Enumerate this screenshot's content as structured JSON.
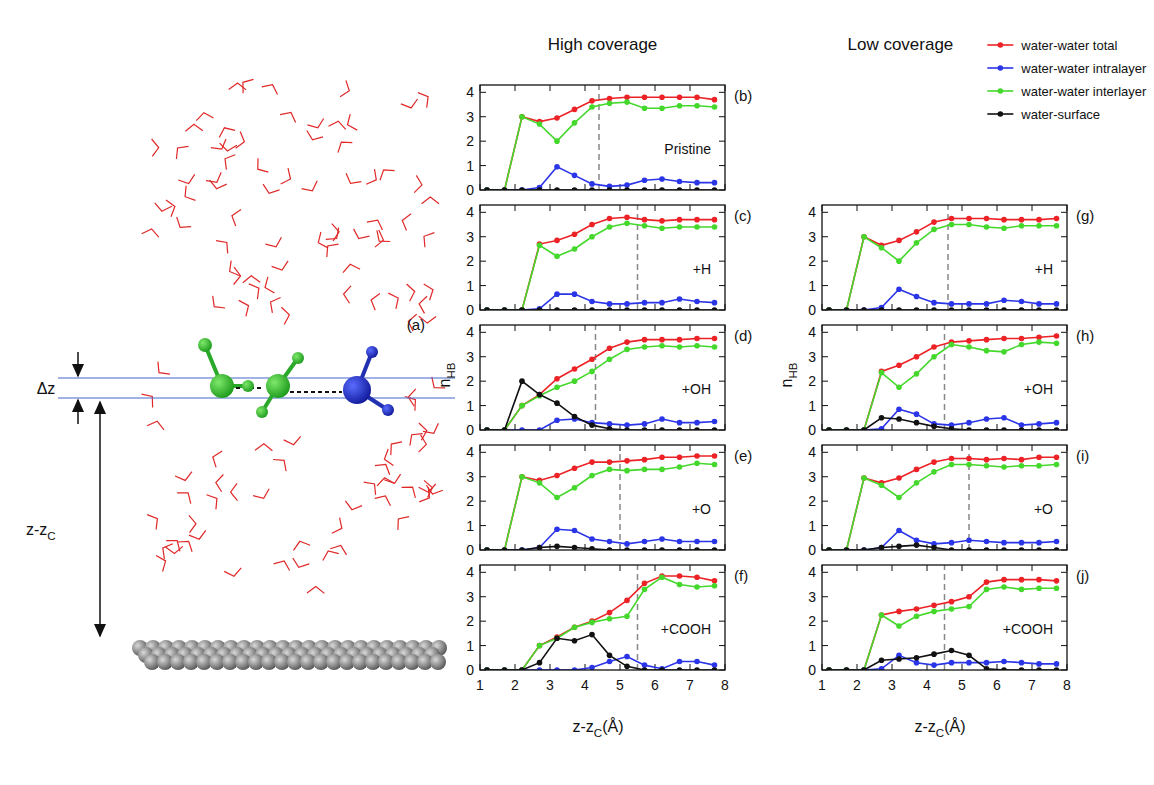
{
  "column_titles": [
    "High coverage",
    "Low coverage"
  ],
  "illustration": {
    "label": "(a)",
    "dz": "Δz",
    "height": {
      "main": "z-z",
      "sub": "C"
    }
  },
  "chart_data": [
    {
      "type": "line",
      "panel": "(b)",
      "title": "Pristine",
      "x": [
        1.2,
        1.7,
        2.2,
        2.7,
        3.2,
        3.7,
        4.2,
        4.7,
        5.2,
        5.7,
        6.2,
        6.7,
        7.2,
        7.7
      ],
      "xlim": [
        1,
        8
      ],
      "ylim": [
        0,
        4.3
      ],
      "xticks": [
        1,
        2,
        3,
        4,
        5,
        6,
        7,
        8
      ],
      "yticks": [
        0,
        1,
        2,
        3,
        4
      ],
      "tick_labels": "y",
      "marker": "circle",
      "vline": 4.4,
      "series": [
        {
          "name": "water-water total",
          "color": "#ec2226",
          "values": [
            0,
            0,
            3.0,
            2.8,
            2.95,
            3.3,
            3.65,
            3.75,
            3.8,
            3.8,
            3.8,
            3.8,
            3.8,
            3.7
          ]
        },
        {
          "name": "water-water intralayer",
          "color": "#2b35e8",
          "values": [
            0,
            0,
            0,
            0.1,
            0.95,
            0.6,
            0.25,
            0.15,
            0.2,
            0.4,
            0.45,
            0.35,
            0.3,
            0.3
          ]
        },
        {
          "name": "water-water interlayer",
          "color": "#44d82c",
          "values": [
            0,
            0,
            3.0,
            2.7,
            2.0,
            2.75,
            3.4,
            3.55,
            3.6,
            3.35,
            3.35,
            3.45,
            3.45,
            3.4
          ]
        },
        {
          "name": "water-surface",
          "color": "#111111",
          "values": [
            0,
            0,
            0,
            0,
            0,
            0,
            0,
            0,
            0,
            0,
            0,
            0,
            0,
            0
          ]
        }
      ]
    },
    {
      "type": "line",
      "panel": "(c)",
      "title": "+H",
      "x": [
        1.2,
        1.7,
        2.2,
        2.7,
        3.2,
        3.7,
        4.2,
        4.7,
        5.2,
        5.7,
        6.2,
        6.7,
        7.2,
        7.7
      ],
      "xlim": [
        1,
        8
      ],
      "ylim": [
        0,
        4.3
      ],
      "xticks": [
        1,
        2,
        3,
        4,
        5,
        6,
        7,
        8
      ],
      "yticks": [
        0,
        1,
        2,
        3,
        4
      ],
      "tick_labels": "y",
      "marker": "circle",
      "vline": 5.5,
      "series": [
        {
          "name": "water-water total",
          "color": "#ec2226",
          "values": [
            0,
            0,
            0,
            2.7,
            2.85,
            3.1,
            3.5,
            3.75,
            3.8,
            3.7,
            3.65,
            3.7,
            3.7,
            3.7
          ]
        },
        {
          "name": "water-water intralayer",
          "color": "#2b35e8",
          "values": [
            0,
            0,
            0,
            0.05,
            0.65,
            0.65,
            0.35,
            0.25,
            0.25,
            0.3,
            0.3,
            0.45,
            0.35,
            0.3
          ]
        },
        {
          "name": "water-water interlayer",
          "color": "#44d82c",
          "values": [
            0,
            0,
            0,
            2.65,
            2.2,
            2.5,
            3.0,
            3.4,
            3.55,
            3.45,
            3.35,
            3.4,
            3.4,
            3.4
          ]
        },
        {
          "name": "water-surface",
          "color": "#111111",
          "values": [
            0,
            0,
            0,
            0,
            0,
            0,
            0,
            0,
            0,
            0,
            0,
            0,
            0,
            0
          ]
        }
      ]
    },
    {
      "type": "line",
      "panel": "(d)",
      "title": "+OH",
      "ylabel": {
        "main": "n",
        "sub": "HB"
      },
      "x": [
        1.2,
        1.7,
        2.2,
        2.7,
        3.2,
        3.7,
        4.2,
        4.7,
        5.2,
        5.7,
        6.2,
        6.7,
        7.2,
        7.7
      ],
      "xlim": [
        1,
        8
      ],
      "ylim": [
        0,
        4.3
      ],
      "xticks": [
        1,
        2,
        3,
        4,
        5,
        6,
        7,
        8
      ],
      "yticks": [
        0,
        1,
        2,
        3,
        4
      ],
      "tick_labels": "y",
      "marker": "circle",
      "vline": 4.3,
      "series": [
        {
          "name": "water-water total",
          "color": "#ec2226",
          "values": [
            0,
            0,
            1.0,
            1.45,
            2.1,
            2.5,
            2.9,
            3.35,
            3.6,
            3.7,
            3.7,
            3.7,
            3.75,
            3.75
          ]
        },
        {
          "name": "water-water intralayer",
          "color": "#2b35e8",
          "values": [
            0,
            0,
            0,
            0,
            0.4,
            0.45,
            0.3,
            0.25,
            0.2,
            0.25,
            0.45,
            0.3,
            0.3,
            0.35
          ]
        },
        {
          "name": "water-water interlayer",
          "color": "#44d82c",
          "values": [
            0,
            0,
            1.0,
            1.4,
            1.75,
            2.0,
            2.4,
            2.9,
            3.3,
            3.4,
            3.45,
            3.4,
            3.45,
            3.4
          ]
        },
        {
          "name": "water-surface",
          "color": "#111111",
          "values": [
            0,
            0,
            2.0,
            1.45,
            1.1,
            0.55,
            0.2,
            0.05,
            0,
            0,
            0,
            0,
            0,
            0
          ]
        }
      ]
    },
    {
      "type": "line",
      "panel": "(e)",
      "title": "+O",
      "x": [
        1.2,
        1.7,
        2.2,
        2.7,
        3.2,
        3.7,
        4.2,
        4.7,
        5.2,
        5.7,
        6.2,
        6.7,
        7.2,
        7.7
      ],
      "xlim": [
        1,
        8
      ],
      "ylim": [
        0,
        4.3
      ],
      "xticks": [
        1,
        2,
        3,
        4,
        5,
        6,
        7,
        8
      ],
      "yticks": [
        0,
        1,
        2,
        3,
        4
      ],
      "tick_labels": "y",
      "marker": "circle",
      "vline": 5.0,
      "series": [
        {
          "name": "water-water total",
          "color": "#ec2226",
          "values": [
            0,
            0,
            3.0,
            2.85,
            3.05,
            3.35,
            3.6,
            3.6,
            3.65,
            3.7,
            3.8,
            3.8,
            3.85,
            3.85
          ]
        },
        {
          "name": "water-water intralayer",
          "color": "#2b35e8",
          "values": [
            0,
            0,
            0,
            0.1,
            0.85,
            0.8,
            0.45,
            0.35,
            0.25,
            0.35,
            0.45,
            0.35,
            0.35,
            0.35
          ]
        },
        {
          "name": "water-water interlayer",
          "color": "#44d82c",
          "values": [
            0,
            0,
            3.0,
            2.75,
            2.15,
            2.55,
            3.05,
            3.3,
            3.25,
            3.3,
            3.3,
            3.4,
            3.55,
            3.5
          ]
        },
        {
          "name": "water-surface",
          "color": "#111111",
          "values": [
            0,
            0,
            0,
            0.1,
            0.15,
            0.1,
            0.05,
            0,
            0,
            0,
            0,
            0,
            0,
            0
          ]
        }
      ]
    },
    {
      "type": "line",
      "panel": "(f)",
      "title": "+COOH",
      "xlabel": {
        "main": "z-z",
        "sub": "C",
        "suffix": "(Å)"
      },
      "x": [
        1.2,
        1.7,
        2.2,
        2.7,
        3.2,
        3.7,
        4.2,
        4.7,
        5.2,
        5.7,
        6.2,
        6.7,
        7.2,
        7.7
      ],
      "xlim": [
        1,
        8
      ],
      "ylim": [
        0,
        4.3
      ],
      "xticks": [
        1,
        2,
        3,
        4,
        5,
        6,
        7,
        8
      ],
      "yticks": [
        0,
        1,
        2,
        3,
        4
      ],
      "marker": "circle",
      "vline": 5.5,
      "series": [
        {
          "name": "water-water total",
          "color": "#ec2226",
          "values": [
            0,
            0,
            0,
            1.0,
            1.35,
            1.75,
            2.0,
            2.35,
            2.85,
            3.55,
            3.85,
            3.85,
            3.8,
            3.65
          ]
        },
        {
          "name": "water-water intralayer",
          "color": "#2b35e8",
          "values": [
            0,
            0,
            0,
            0,
            0,
            0,
            0.1,
            0.35,
            0.55,
            0.2,
            0.05,
            0.35,
            0.35,
            0.2
          ]
        },
        {
          "name": "water-water interlayer",
          "color": "#44d82c",
          "values": [
            0,
            0,
            0,
            1.0,
            1.3,
            1.75,
            1.95,
            2.1,
            2.2,
            3.3,
            3.8,
            3.5,
            3.4,
            3.45
          ]
        },
        {
          "name": "water-surface",
          "color": "#111111",
          "values": [
            0,
            0,
            0,
            0.3,
            1.3,
            1.2,
            1.45,
            0.6,
            0.15,
            0,
            0,
            0,
            0,
            0
          ]
        }
      ]
    },
    {
      "type": "line",
      "panel": "(g)",
      "title": "+H",
      "legend": "top",
      "x": [
        1.2,
        1.7,
        2.2,
        2.7,
        3.2,
        3.7,
        4.2,
        4.7,
        5.2,
        5.7,
        6.2,
        6.7,
        7.2,
        7.7
      ],
      "xlim": [
        1,
        8
      ],
      "ylim": [
        0,
        4.3
      ],
      "xticks": [
        1,
        2,
        3,
        4,
        5,
        6,
        7,
        8
      ],
      "yticks": [
        0,
        1,
        2,
        3,
        4
      ],
      "tick_labels": "y",
      "marker": "circle",
      "vline": 4.6,
      "series": [
        {
          "name": "water-water total",
          "color": "#ec2226",
          "values": [
            0,
            0,
            3.0,
            2.65,
            2.85,
            3.2,
            3.6,
            3.75,
            3.75,
            3.75,
            3.7,
            3.7,
            3.7,
            3.75
          ]
        },
        {
          "name": "water-water intralayer",
          "color": "#2b35e8",
          "values": [
            0,
            0,
            0,
            0.1,
            0.85,
            0.55,
            0.3,
            0.25,
            0.25,
            0.25,
            0.4,
            0.35,
            0.25,
            0.25
          ]
        },
        {
          "name": "water-water interlayer",
          "color": "#44d82c",
          "values": [
            0,
            0,
            3.0,
            2.55,
            2.0,
            2.75,
            3.3,
            3.5,
            3.5,
            3.4,
            3.35,
            3.45,
            3.45,
            3.45
          ]
        },
        {
          "name": "water-surface",
          "color": "#111111",
          "values": [
            0,
            0,
            0,
            0,
            0,
            0,
            0,
            0,
            0,
            0,
            0,
            0,
            0,
            0
          ]
        }
      ]
    },
    {
      "type": "line",
      "panel": "(h)",
      "title": "+OH",
      "ylabel": {
        "main": "n",
        "sub": "HB"
      },
      "x": [
        1.2,
        1.7,
        2.2,
        2.7,
        3.2,
        3.7,
        4.2,
        4.7,
        5.2,
        5.7,
        6.2,
        6.7,
        7.2,
        7.7
      ],
      "xlim": [
        1,
        8
      ],
      "ylim": [
        0,
        4.3
      ],
      "xticks": [
        1,
        2,
        3,
        4,
        5,
        6,
        7,
        8
      ],
      "yticks": [
        0,
        1,
        2,
        3,
        4
      ],
      "tick_labels": "y",
      "marker": "circle",
      "vline": 4.5,
      "series": [
        {
          "name": "water-water total",
          "color": "#ec2226",
          "values": [
            0,
            0,
            0,
            2.4,
            2.65,
            3.0,
            3.4,
            3.6,
            3.65,
            3.7,
            3.75,
            3.75,
            3.8,
            3.85
          ]
        },
        {
          "name": "water-water intralayer",
          "color": "#2b35e8",
          "values": [
            0,
            0,
            0,
            0.05,
            0.85,
            0.65,
            0.25,
            0.2,
            0.3,
            0.45,
            0.5,
            0.2,
            0.25,
            0.3
          ]
        },
        {
          "name": "water-water interlayer",
          "color": "#44d82c",
          "values": [
            0,
            0,
            0,
            2.35,
            1.75,
            2.3,
            3.0,
            3.5,
            3.4,
            3.25,
            3.2,
            3.5,
            3.6,
            3.55
          ]
        },
        {
          "name": "water-surface",
          "color": "#111111",
          "values": [
            0,
            0,
            0,
            0.5,
            0.45,
            0.3,
            0.15,
            0.05,
            0,
            0,
            0,
            0,
            0,
            0
          ]
        }
      ]
    },
    {
      "type": "line",
      "panel": "(i)",
      "title": "+O",
      "x": [
        1.2,
        1.7,
        2.2,
        2.7,
        3.2,
        3.7,
        4.2,
        4.7,
        5.2,
        5.7,
        6.2,
        6.7,
        7.2,
        7.7
      ],
      "xlim": [
        1,
        8
      ],
      "ylim": [
        0,
        4.3
      ],
      "xticks": [
        1,
        2,
        3,
        4,
        5,
        6,
        7,
        8
      ],
      "yticks": [
        0,
        1,
        2,
        3,
        4
      ],
      "tick_labels": "y",
      "marker": "circle",
      "vline": 5.2,
      "series": [
        {
          "name": "water-water total",
          "color": "#ec2226",
          "values": [
            0,
            0,
            2.95,
            2.75,
            2.95,
            3.3,
            3.6,
            3.75,
            3.75,
            3.7,
            3.75,
            3.7,
            3.8,
            3.8
          ]
        },
        {
          "name": "water-water intralayer",
          "color": "#2b35e8",
          "values": [
            0,
            0,
            0,
            0.1,
            0.8,
            0.4,
            0.25,
            0.3,
            0.4,
            0.35,
            0.3,
            0.3,
            0.3,
            0.35
          ]
        },
        {
          "name": "water-water interlayer",
          "color": "#44d82c",
          "values": [
            0,
            0,
            2.95,
            2.65,
            2.15,
            2.75,
            3.2,
            3.5,
            3.5,
            3.45,
            3.4,
            3.45,
            3.45,
            3.5
          ]
        },
        {
          "name": "water-surface",
          "color": "#111111",
          "values": [
            0,
            0,
            0,
            0.1,
            0.15,
            0.2,
            0.1,
            0,
            0,
            0,
            0,
            0,
            0,
            0
          ]
        }
      ]
    },
    {
      "type": "line",
      "panel": "(j)",
      "title": "+COOH",
      "xlabel": {
        "main": "z-z",
        "sub": "C",
        "suffix": "(Å)"
      },
      "x": [
        1.2,
        1.7,
        2.2,
        2.7,
        3.2,
        3.7,
        4.2,
        4.7,
        5.2,
        5.7,
        6.2,
        6.7,
        7.2,
        7.7
      ],
      "xlim": [
        1,
        8
      ],
      "ylim": [
        0,
        4.3
      ],
      "xticks": [
        1,
        2,
        3,
        4,
        5,
        6,
        7,
        8
      ],
      "yticks": [
        0,
        1,
        2,
        3,
        4
      ],
      "marker": "circle",
      "vline": 4.5,
      "series": [
        {
          "name": "water-water total",
          "color": "#ec2226",
          "values": [
            0,
            0,
            0,
            2.25,
            2.4,
            2.5,
            2.65,
            2.8,
            3.0,
            3.6,
            3.7,
            3.7,
            3.7,
            3.65
          ]
        },
        {
          "name": "water-water intralayer",
          "color": "#2b35e8",
          "values": [
            0,
            0,
            0,
            0.05,
            0.6,
            0.3,
            0.2,
            0.3,
            0.3,
            0.3,
            0.35,
            0.3,
            0.25,
            0.25
          ]
        },
        {
          "name": "water-water interlayer",
          "color": "#44d82c",
          "values": [
            0,
            0,
            0,
            2.25,
            1.8,
            2.2,
            2.4,
            2.5,
            2.6,
            3.3,
            3.4,
            3.3,
            3.35,
            3.35
          ]
        },
        {
          "name": "water-surface",
          "color": "#111111",
          "values": [
            0,
            0,
            0,
            0.4,
            0.45,
            0.5,
            0.65,
            0.8,
            0.6,
            0.05,
            0,
            0,
            0,
            0
          ]
        }
      ]
    }
  ]
}
